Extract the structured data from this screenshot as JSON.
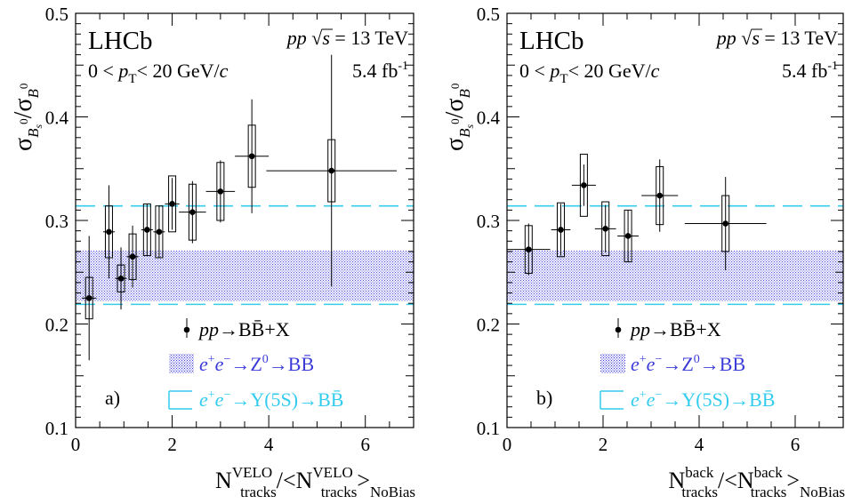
{
  "chart_data": [
    {
      "panel_label": "a)",
      "type": "scatter",
      "experiment": "LHCb",
      "collision": "pp",
      "energy": "= 13 TeV",
      "luminosity": "5.4 fb",
      "luminosity_exp": "-1",
      "pt_range_left": "0 <",
      "pt_range_right": "< 20 GeV/",
      "xlabel_main": "N",
      "xlabel_sup": "VELO",
      "xlabel_sub": "tracks",
      "xlabel_ref": "NoBias",
      "ylabel": "σ_Bs0 / σ_B0",
      "xlim": [
        0,
        7
      ],
      "ylim": [
        0.1,
        0.5
      ],
      "xticks": [
        "0",
        "2",
        "4",
        "6"
      ],
      "yticks": [
        "0.1",
        "0.2",
        "0.3",
        "0.4",
        "0.5"
      ],
      "series": [
        {
          "name": "pp→BB̄+X",
          "x": [
            0.28,
            0.69,
            0.94,
            1.18,
            1.48,
            1.73,
            2.0,
            2.42,
            3.0,
            3.65,
            5.3
          ],
          "xerr": [
            0.15,
            0.12,
            0.12,
            0.12,
            0.12,
            0.12,
            0.15,
            0.28,
            0.3,
            0.35,
            1.35
          ],
          "y": [
            0.225,
            0.289,
            0.244,
            0.265,
            0.291,
            0.289,
            0.316,
            0.308,
            0.328,
            0.362,
            0.348
          ],
          "stat_err": [
            0.06,
            0.045,
            0.03,
            0.03,
            0.025,
            0.025,
            0.025,
            0.03,
            0.03,
            0.055,
            0.112
          ],
          "syst_err": [
            0.02,
            0.025,
            0.013,
            0.022,
            0.025,
            0.025,
            0.027,
            0.027,
            0.028,
            0.03,
            0.03
          ]
        }
      ],
      "legend": {
        "pp": "pp",
        "pp_rest": "→BB̄+X",
        "z0_lead": "e",
        "z0_rest": "→Z",
        "z0_sup": "0",
        "z0_end": "→BB̄",
        "y5s_lead": "e",
        "y5s_rest": "→Υ(5S)→BB̄"
      },
      "z0_band": {
        "low": 0.222,
        "high": 0.271,
        "color": "#3b3bd8"
      },
      "y5s_band": {
        "low": 0.219,
        "high": 0.314,
        "color": "#33ccee"
      }
    },
    {
      "panel_label": "b)",
      "type": "scatter",
      "experiment": "LHCb",
      "collision": "pp",
      "energy": "= 13 TeV",
      "luminosity": "5.4 fb",
      "luminosity_exp": "-1",
      "pt_range_left": "0 <",
      "pt_range_right": "< 20 GeV/",
      "xlabel_main": "N",
      "xlabel_sup": "back",
      "xlabel_sub": "tracks",
      "xlabel_ref": "NoBias",
      "ylabel": "σ_Bs0 / σ_B0",
      "xlim": [
        0,
        7
      ],
      "ylim": [
        0.1,
        0.5
      ],
      "xticks": [
        "0",
        "2",
        "4",
        "6"
      ],
      "yticks": [
        "0.1",
        "0.2",
        "0.3",
        "0.4",
        "0.5"
      ],
      "series": [
        {
          "name": "pp→BB̄+X",
          "x": [
            0.45,
            1.12,
            1.6,
            2.05,
            2.52,
            3.18,
            4.55
          ],
          "xerr": [
            0.45,
            0.2,
            0.25,
            0.22,
            0.22,
            0.38,
            0.85
          ],
          "y": [
            0.272,
            0.291,
            0.334,
            0.292,
            0.285,
            0.324,
            0.297
          ],
          "stat_err": [
            0.025,
            0.025,
            0.02,
            0.023,
            0.025,
            0.035,
            0.045
          ],
          "syst_err": [
            0.023,
            0.026,
            0.03,
            0.026,
            0.025,
            0.028,
            0.027
          ]
        }
      ],
      "legend": {
        "pp": "pp",
        "pp_rest": "→BB̄+X",
        "z0_lead": "e",
        "z0_rest": "→Z",
        "z0_sup": "0",
        "z0_end": "→BB̄",
        "y5s_lead": "e",
        "y5s_rest": "→Υ(5S)→BB̄"
      },
      "z0_band": {
        "low": 0.222,
        "high": 0.271,
        "color": "#3b3bd8"
      },
      "y5s_band": {
        "low": 0.219,
        "high": 0.314,
        "color": "#33ccee"
      }
    }
  ]
}
